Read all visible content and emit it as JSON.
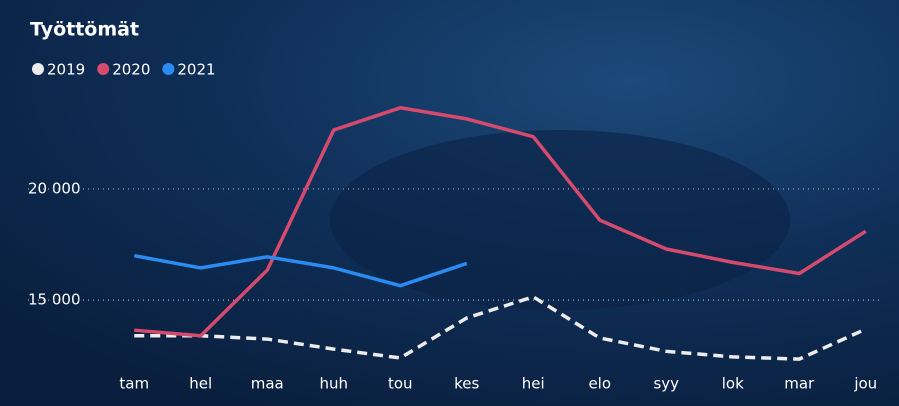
{
  "chart_data": {
    "type": "line",
    "title": "Työttömät",
    "categories": [
      "tam",
      "hel",
      "maa",
      "huh",
      "tou",
      "kes",
      "hei",
      "elo",
      "syy",
      "lok",
      "mar",
      "jou"
    ],
    "series": [
      {
        "name": "2019",
        "color": "#ececec",
        "dashed": true,
        "values": [
          13400,
          13400,
          13250,
          12800,
          12400,
          14200,
          15150,
          13300,
          12700,
          12450,
          12350,
          13700
        ]
      },
      {
        "name": "2020",
        "color": "#d64a6e",
        "values": [
          13650,
          13400,
          16350,
          22650,
          23650,
          23150,
          22350,
          18600,
          17300,
          16700,
          16200,
          18100
        ]
      },
      {
        "name": "2021",
        "color": "#2a8cf0",
        "values": [
          17000,
          16450,
          16950,
          16450,
          15650,
          16650,
          null,
          null,
          null,
          null,
          null,
          null
        ]
      }
    ],
    "ylim": [
      11500,
      24000
    ],
    "yticks": [
      {
        "value": 15000,
        "label": "15 000"
      },
      {
        "value": 20000,
        "label": "20 000"
      }
    ],
    "grid": true
  }
}
